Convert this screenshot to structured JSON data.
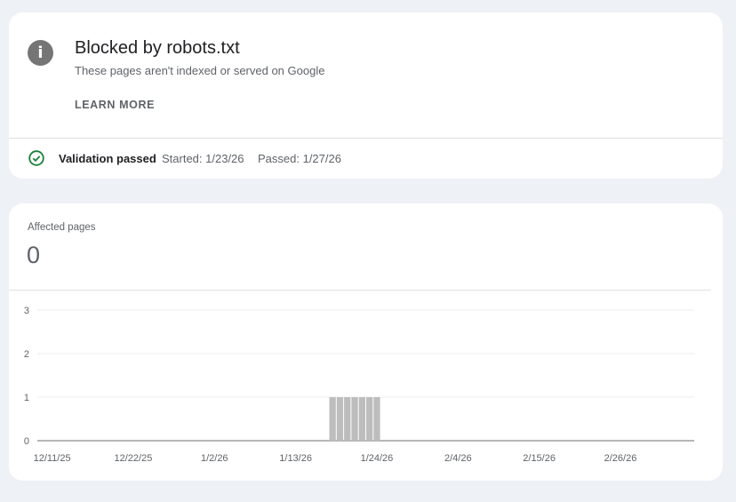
{
  "issue": {
    "icon": "info-icon",
    "title": "Blocked by robots.txt",
    "subtitle": "These pages aren't indexed or served on Google",
    "learn_more": "LEARN MORE"
  },
  "validation": {
    "icon": "check-circle-icon",
    "status": "Validation passed",
    "started": "Started: 1/23/26",
    "passed": "Passed: 1/27/26",
    "status_color": "#188038"
  },
  "affected": {
    "label": "Affected pages",
    "value": "0"
  },
  "chart_data": {
    "type": "bar",
    "xlim": [
      "12/9/25",
      "3/8/26"
    ],
    "ylim": [
      0,
      3
    ],
    "yticks": [
      "0",
      "1",
      "2",
      "3"
    ],
    "xticks": [
      "12/11/25",
      "12/22/25",
      "1/2/26",
      "1/13/26",
      "1/24/26",
      "2/4/26",
      "2/15/26",
      "2/26/26"
    ],
    "grid": true,
    "bar_color": "#bdbdbd",
    "points": [
      {
        "x": "1/18/26",
        "y": 1
      },
      {
        "x": "1/19/26",
        "y": 1
      },
      {
        "x": "1/20/26",
        "y": 1
      },
      {
        "x": "1/21/26",
        "y": 1
      },
      {
        "x": "1/22/26",
        "y": 1
      },
      {
        "x": "1/23/26",
        "y": 1
      },
      {
        "x": "1/24/26",
        "y": 1
      }
    ]
  }
}
